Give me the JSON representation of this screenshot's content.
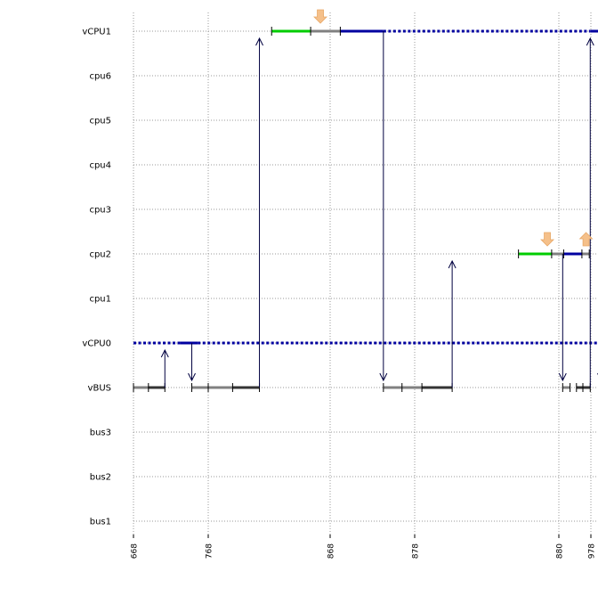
{
  "chart_data": {
    "type": "timeline",
    "rows": [
      "vCPU1",
      "cpu6",
      "cpu5",
      "cpu4",
      "cpu3",
      "cpu2",
      "cpu1",
      "vCPU0",
      "vBUS",
      "bus3",
      "bus2",
      "bus1"
    ],
    "x_ticks": [
      {
        "label": "668",
        "t": 668
      },
      {
        "label": "768",
        "t": 768
      },
      {
        "label": "868",
        "t": 868
      },
      {
        "label": "878",
        "t": 878
      },
      {
        "label": "880",
        "t": 880
      },
      {
        "label": "978",
        "t": 978
      }
    ],
    "grid": true,
    "colors": {
      "blue": "#0000a0",
      "green": "#00cc00",
      "gray": "#808080",
      "dark": "#333333",
      "red": "#dd0000",
      "arrow": "#000040",
      "release": "#f5c08a",
      "grid": "#999999"
    },
    "segments": [
      {
        "row": "vCPU1",
        "t0": 1.52,
        "t1": 1.84,
        "color": "green"
      },
      {
        "row": "vCPU1",
        "t0": 1.84,
        "t1": 2.12,
        "color": "gray"
      },
      {
        "row": "vCPU1",
        "t0": 2.12,
        "t1": 2.63,
        "color": "blue"
      },
      {
        "row": "vCPU1",
        "t0": 2.63,
        "t1": 4.98,
        "color": "blue",
        "dotted": true
      },
      {
        "row": "vCPU1",
        "t0": 4.98,
        "t1": 5.58,
        "color": "blue"
      },
      {
        "row": "vCPU1",
        "t0": 5.58,
        "t1": 5.78,
        "color": "gray"
      },
      {
        "row": "vCPU1",
        "t0": 5.92,
        "t1": 6.05,
        "color": "red"
      },
      {
        "row": "cpu2",
        "t0": 3.72,
        "t1": 3.95,
        "color": "green"
      },
      {
        "row": "cpu2",
        "t0": 3.95,
        "t1": 4.15,
        "color": "gray"
      },
      {
        "row": "cpu2",
        "t0": 4.15,
        "t1": 4.72,
        "color": "blue"
      },
      {
        "row": "cpu2",
        "t0": 4.72,
        "t1": 4.95,
        "color": "gray"
      },
      {
        "row": "cpu2",
        "t0": 5.78,
        "t1": 5.96,
        "color": "red"
      },
      {
        "row": "vCPU0",
        "t0": 0,
        "t1": 0.62,
        "color": "blue",
        "dotted": true
      },
      {
        "row": "vCPU0",
        "t0": 0.62,
        "t1": 0.86,
        "color": "blue"
      },
      {
        "row": "vCPU0",
        "t0": 0.86,
        "t1": 6.05,
        "color": "blue",
        "dotted": true
      },
      {
        "row": "vBUS",
        "t0": 0,
        "t1": 0.2,
        "color": "gray"
      },
      {
        "row": "vBUS",
        "t0": 0.2,
        "t1": 0.42,
        "color": "dark"
      },
      {
        "row": "vBUS",
        "t0": 0.78,
        "t1": 1.0,
        "color": "gray"
      },
      {
        "row": "vBUS",
        "t0": 1.0,
        "t1": 1.2,
        "color": "gray"
      },
      {
        "row": "vBUS",
        "t0": 1.2,
        "t1": 1.42,
        "color": "dark"
      },
      {
        "row": "vBUS",
        "t0": 2.63,
        "t1": 2.85,
        "color": "gray"
      },
      {
        "row": "vBUS",
        "t0": 2.85,
        "t1": 3.05,
        "color": "gray"
      },
      {
        "row": "vBUS",
        "t0": 3.05,
        "t1": 3.26,
        "color": "dark"
      },
      {
        "row": "vBUS",
        "t0": 4.12,
        "t1": 4.35,
        "color": "gray"
      },
      {
        "row": "vBUS",
        "t0": 4.55,
        "t1": 4.75,
        "color": "dark"
      },
      {
        "row": "vBUS",
        "t0": 4.75,
        "t1": 4.98,
        "color": "dark"
      },
      {
        "row": "vBUS",
        "t0": 5.32,
        "t1": 5.55,
        "color": "gray"
      },
      {
        "row": "vBUS",
        "t0": 6.0,
        "t1": 6.05,
        "color": "gray"
      }
    ],
    "ticks": [
      {
        "row": "vCPU1",
        "t": [
          1.52,
          1.84,
          2.12,
          5.58,
          5.78,
          5.92
        ]
      },
      {
        "row": "cpu2",
        "t": [
          3.72,
          3.95,
          4.15,
          4.72,
          4.95,
          5.78,
          5.96
        ]
      },
      {
        "row": "vBUS",
        "t": [
          0,
          0.2,
          0.42,
          0.78,
          1.0,
          1.2,
          1.42,
          2.63,
          2.85,
          3.05,
          3.26,
          4.12,
          4.35,
          4.55,
          4.75,
          4.98,
          5.32,
          5.55,
          6.0
        ]
      }
    ],
    "arrows": [
      {
        "t": 0.42,
        "from": "vBUS",
        "to": "vCPU0"
      },
      {
        "t": 0.78,
        "from": "vCPU0",
        "to": "vBUS"
      },
      {
        "t": 1.42,
        "from": "vBUS",
        "to": "vCPU1"
      },
      {
        "t": 2.63,
        "from": "vCPU1",
        "to": "vBUS"
      },
      {
        "t": 3.26,
        "from": "vBUS",
        "to": "cpu2"
      },
      {
        "t": 4.12,
        "from": "cpu2",
        "to": "vBUS"
      },
      {
        "t": 4.98,
        "from": "vBUS",
        "to": "vCPU1"
      },
      {
        "t": 5.32,
        "from": "vCPU1",
        "to": "vBUS"
      }
    ],
    "markers": [
      {
        "row": "vCPU1",
        "t": 1.92,
        "dir": "down"
      },
      {
        "row": "vCPU1",
        "t": 5.7,
        "dir": "up"
      },
      {
        "row": "cpu2",
        "t": 3.92,
        "dir": "down"
      },
      {
        "row": "cpu2",
        "t": 4.85,
        "dir": "up"
      }
    ]
  }
}
